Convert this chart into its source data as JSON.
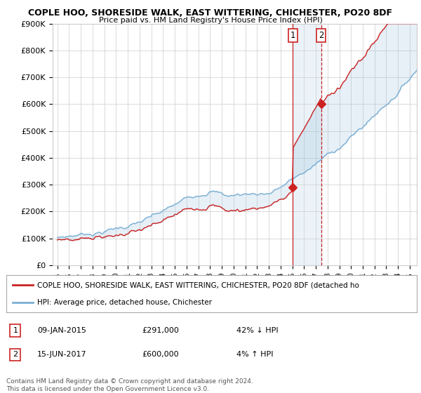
{
  "title1": "COPLE HOO, SHORESIDE WALK, EAST WITTERING, CHICHESTER, PO20 8DF",
  "title2": "Price paid vs. HM Land Registry's House Price Index (HPI)",
  "ylim": [
    0,
    900000
  ],
  "yticks": [
    0,
    100000,
    200000,
    300000,
    400000,
    500000,
    600000,
    700000,
    800000,
    900000
  ],
  "ytick_labels": [
    "£0",
    "£100K",
    "£200K",
    "£300K",
    "£400K",
    "£500K",
    "£600K",
    "£700K",
    "£800K",
    "£900K"
  ],
  "hpi_color": "#7bafd4",
  "price_color": "#cc2222",
  "sale1_year": 2015.04,
  "sale1_price": 291000,
  "sale2_year": 2017.46,
  "sale2_price": 600000,
  "legend_property": "COPLE HOO, SHORESIDE WALK, EAST WITTERING, CHICHESTER, PO20 8DF (detached ho",
  "legend_hpi": "HPI: Average price, detached house, Chichester",
  "table_rows": [
    {
      "num": "1",
      "date": "09-JAN-2015",
      "price": "£291,000",
      "change": "42% ↓ HPI"
    },
    {
      "num": "2",
      "date": "15-JUN-2017",
      "price": "£600,000",
      "change": "4% ↑ HPI"
    }
  ],
  "footnote": "Contains HM Land Registry data © Crown copyright and database right 2024.\nThis data is licensed under the Open Government Licence v3.0.",
  "background_color": "#ffffff",
  "grid_color": "#cccccc"
}
